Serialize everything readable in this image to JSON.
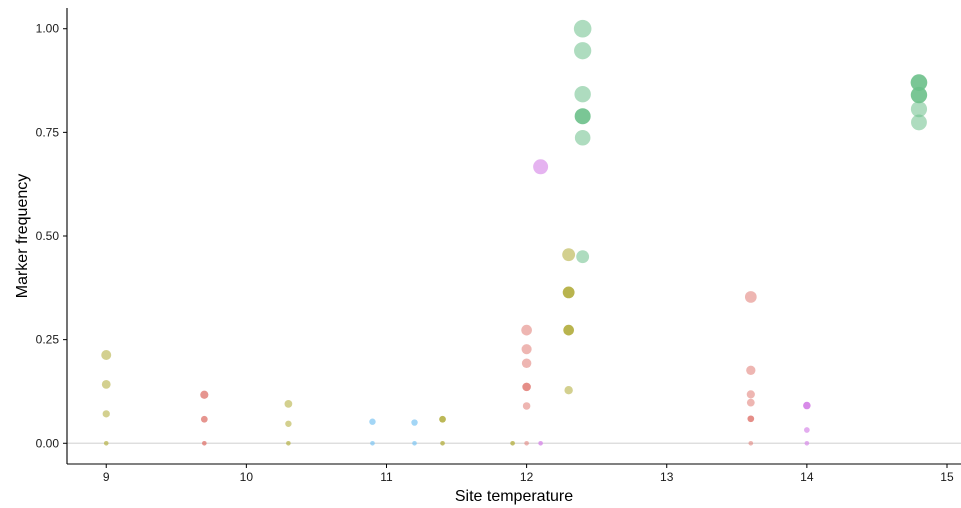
{
  "chart_data": {
    "type": "scatter",
    "title": "",
    "xlabel": "Site temperature",
    "ylabel": "Marker frequency",
    "xlim": [
      8.72,
      15.1
    ],
    "ylim": [
      -0.05,
      1.05
    ],
    "x_ticks": [
      9,
      10,
      11,
      12,
      13,
      14,
      15
    ],
    "x_tick_labels": [
      "9",
      "10",
      "11",
      "12",
      "13",
      "14",
      "15"
    ],
    "y_ticks": [
      0,
      0.25,
      0.5,
      0.75,
      1.0
    ],
    "y_tick_labels": [
      "0.00",
      "0.25",
      "0.50",
      "0.75",
      "1.00"
    ],
    "grid": false,
    "legend": "none",
    "reference_line_y": 0,
    "colors": {
      "olive": "#b5b045",
      "red": "#e07a73",
      "blue": "#7cc4f2",
      "green": "#6cc08a",
      "purple": "#d78ae8"
    },
    "points": [
      {
        "x": 9.0,
        "y": 0.213,
        "size": 0.22,
        "color": "olive",
        "alpha": 0.6
      },
      {
        "x": 9.0,
        "y": 0.142,
        "size": 0.15,
        "color": "olive",
        "alpha": 0.6
      },
      {
        "x": 9.0,
        "y": 0.071,
        "size": 0.08,
        "color": "olive",
        "alpha": 0.6
      },
      {
        "x": 9.0,
        "y": 0.0,
        "size": 0.01,
        "color": "olive",
        "alpha": 0.7
      },
      {
        "x": 9.7,
        "y": 0.117,
        "size": 0.12,
        "color": "red",
        "alpha": 0.8
      },
      {
        "x": 9.7,
        "y": 0.058,
        "size": 0.06,
        "color": "red",
        "alpha": 0.8
      },
      {
        "x": 9.7,
        "y": 0.0,
        "size": 0.01,
        "color": "red",
        "alpha": 0.8
      },
      {
        "x": 10.3,
        "y": 0.095,
        "size": 0.1,
        "color": "olive",
        "alpha": 0.6
      },
      {
        "x": 10.3,
        "y": 0.047,
        "size": 0.05,
        "color": "olive",
        "alpha": 0.6
      },
      {
        "x": 10.3,
        "y": 0.0,
        "size": 0.01,
        "color": "olive",
        "alpha": 0.7
      },
      {
        "x": 10.9,
        "y": 0.052,
        "size": 0.05,
        "color": "blue",
        "alpha": 0.7
      },
      {
        "x": 10.9,
        "y": 0.0,
        "size": 0.01,
        "color": "blue",
        "alpha": 0.7
      },
      {
        "x": 11.2,
        "y": 0.05,
        "size": 0.05,
        "color": "blue",
        "alpha": 0.7
      },
      {
        "x": 11.2,
        "y": 0.0,
        "size": 0.01,
        "color": "blue",
        "alpha": 0.7
      },
      {
        "x": 11.4,
        "y": 0.058,
        "size": 0.06,
        "color": "olive",
        "alpha": 0.9
      },
      {
        "x": 11.4,
        "y": 0.0,
        "size": 0.01,
        "color": "olive",
        "alpha": 0.8
      },
      {
        "x": 11.9,
        "y": 0.0,
        "size": 0.01,
        "color": "olive",
        "alpha": 0.8
      },
      {
        "x": 12.0,
        "y": 0.273,
        "size": 0.27,
        "color": "red",
        "alpha": 0.55
      },
      {
        "x": 12.0,
        "y": 0.227,
        "size": 0.23,
        "color": "red",
        "alpha": 0.55
      },
      {
        "x": 12.0,
        "y": 0.193,
        "size": 0.19,
        "color": "red",
        "alpha": 0.55
      },
      {
        "x": 12.0,
        "y": 0.136,
        "size": 0.14,
        "color": "red",
        "alpha": 0.85
      },
      {
        "x": 12.0,
        "y": 0.09,
        "size": 0.09,
        "color": "red",
        "alpha": 0.55
      },
      {
        "x": 12.0,
        "y": 0.0,
        "size": 0.01,
        "color": "red",
        "alpha": 0.55
      },
      {
        "x": 12.1,
        "y": 0.667,
        "size": 0.67,
        "color": "purple",
        "alpha": 0.65
      },
      {
        "x": 12.1,
        "y": 0.0,
        "size": 0.01,
        "color": "purple",
        "alpha": 0.8
      },
      {
        "x": 12.3,
        "y": 0.455,
        "size": 0.45,
        "color": "olive",
        "alpha": 0.6
      },
      {
        "x": 12.3,
        "y": 0.364,
        "size": 0.36,
        "color": "olive",
        "alpha": 0.95
      },
      {
        "x": 12.3,
        "y": 0.273,
        "size": 0.27,
        "color": "olive",
        "alpha": 0.95
      },
      {
        "x": 12.3,
        "y": 0.128,
        "size": 0.13,
        "color": "olive",
        "alpha": 0.6
      },
      {
        "x": 12.4,
        "y": 1.0,
        "size": 1.0,
        "color": "green",
        "alpha": 0.55
      },
      {
        "x": 12.4,
        "y": 0.947,
        "size": 0.95,
        "color": "green",
        "alpha": 0.55
      },
      {
        "x": 12.4,
        "y": 0.842,
        "size": 0.84,
        "color": "green",
        "alpha": 0.55
      },
      {
        "x": 12.4,
        "y": 0.789,
        "size": 0.79,
        "color": "green",
        "alpha": 0.9
      },
      {
        "x": 12.4,
        "y": 0.737,
        "size": 0.74,
        "color": "green",
        "alpha": 0.55
      },
      {
        "x": 12.4,
        "y": 0.45,
        "size": 0.45,
        "color": "green",
        "alpha": 0.55
      },
      {
        "x": 13.6,
        "y": 0.353,
        "size": 0.35,
        "color": "red",
        "alpha": 0.55
      },
      {
        "x": 13.6,
        "y": 0.176,
        "size": 0.18,
        "color": "red",
        "alpha": 0.55
      },
      {
        "x": 13.6,
        "y": 0.118,
        "size": 0.12,
        "color": "red",
        "alpha": 0.55
      },
      {
        "x": 13.6,
        "y": 0.098,
        "size": 0.1,
        "color": "red",
        "alpha": 0.55
      },
      {
        "x": 13.6,
        "y": 0.059,
        "size": 0.06,
        "color": "red",
        "alpha": 0.85
      },
      {
        "x": 13.6,
        "y": 0.0,
        "size": 0.01,
        "color": "red",
        "alpha": 0.55
      },
      {
        "x": 14.0,
        "y": 0.091,
        "size": 0.09,
        "color": "purple",
        "alpha": 1.0
      },
      {
        "x": 14.0,
        "y": 0.032,
        "size": 0.03,
        "color": "purple",
        "alpha": 0.7
      },
      {
        "x": 14.0,
        "y": 0.0,
        "size": 0.01,
        "color": "purple",
        "alpha": 0.7
      },
      {
        "x": 14.8,
        "y": 0.87,
        "size": 0.87,
        "color": "green",
        "alpha": 0.9
      },
      {
        "x": 14.8,
        "y": 0.84,
        "size": 0.84,
        "color": "green",
        "alpha": 0.9
      },
      {
        "x": 14.8,
        "y": 0.806,
        "size": 0.81,
        "color": "green",
        "alpha": 0.55
      },
      {
        "x": 14.8,
        "y": 0.774,
        "size": 0.77,
        "color": "green",
        "alpha": 0.55
      }
    ]
  }
}
